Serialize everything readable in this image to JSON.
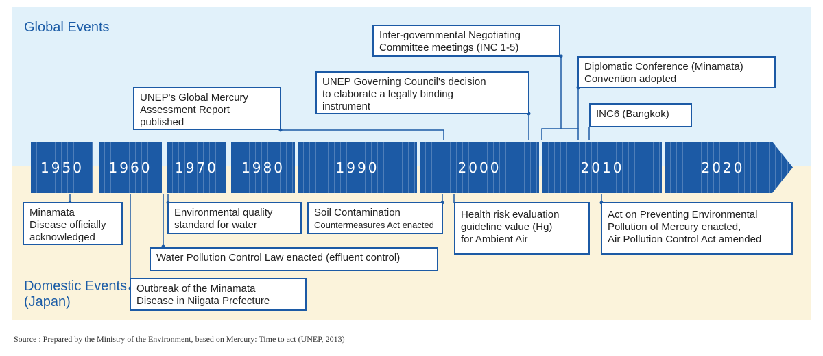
{
  "zones": {
    "global_title": "Global Events",
    "domestic_title_line1": "Domestic Events",
    "domestic_title_line2": "(Japan)"
  },
  "timeline": {
    "decades": [
      "1950",
      "1960",
      "1970",
      "1980",
      "1990",
      "2000",
      "2010",
      "2020"
    ],
    "arrow_color": "#1c5aa5"
  },
  "global_events": [
    {
      "id": "inc",
      "text": "Inter-governmental Negotiating\nCommittee meetings (INC 1-5)"
    },
    {
      "id": "diplomatic",
      "text": "Diplomatic Conference (Minamata)\nConvention adopted"
    },
    {
      "id": "governing",
      "text": "UNEP Governing Council's decision\nto elaborate a legally binding\ninstrument"
    },
    {
      "id": "assessment",
      "text": "UNEP's Global Mercury\nAssessment Report\npublished"
    },
    {
      "id": "inc6",
      "text": "INC6 (Bangkok)"
    }
  ],
  "domestic_events": [
    {
      "id": "minamata",
      "text": "Minamata\nDisease officially\nacknowledged"
    },
    {
      "id": "envquality",
      "text": "Environmental quality\nstandard for water"
    },
    {
      "id": "soil_1",
      "text": "Soil Contamination"
    },
    {
      "id": "soil_2",
      "text": "Countermeasures Act enacted"
    },
    {
      "id": "health",
      "text": "Health risk evaluation\nguideline value (Hg)\nfor Ambient Air"
    },
    {
      "id": "act",
      "text": "Act on Preventing Environmental\nPollution of Mercury enacted,\nAir Pollution Control Act amended"
    },
    {
      "id": "water",
      "text": "Water Pollution Control Law enacted (effluent control)"
    },
    {
      "id": "niigata",
      "text": "Outbreak of the Minamata\nDisease in Niigata Prefecture"
    }
  ],
  "source": "Source : Prepared by the Ministry of the Environment, based on Mercury: Time to act (UNEP, 2013)"
}
